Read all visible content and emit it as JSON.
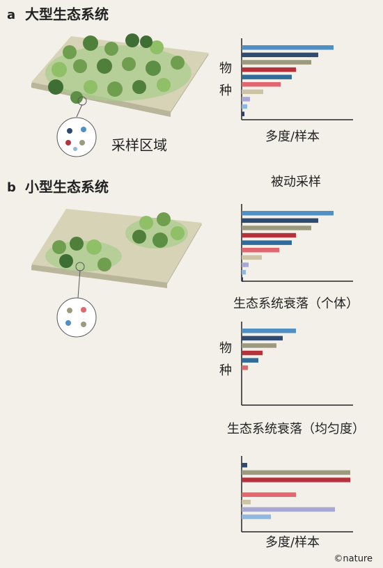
{
  "panels": [
    {
      "label": "a",
      "title": "大型生态系统",
      "sample_label": "采样区域"
    },
    {
      "label": "b",
      "title": "小型生态系统"
    }
  ],
  "credit": "©nature",
  "chart_data": [
    {
      "type": "bar",
      "orientation": "horizontal",
      "ylabel": "物种",
      "xlabel": "多度/样本",
      "xlim": [
        0,
        160
      ],
      "values": [
        132,
        110,
        100,
        78,
        72,
        56,
        31,
        12,
        8,
        4
      ],
      "colors": [
        "#4f8fc4",
        "#2e4a6e",
        "#9c9a7e",
        "#b5313c",
        "#2f6c99",
        "#e0666f",
        "#cbc3a3",
        "#a7a8d4",
        "#8fb7e0",
        "#2c3e66"
      ]
    },
    {
      "type": "bar",
      "orientation": "horizontal",
      "title": "被动采样",
      "xlim": [
        0,
        160
      ],
      "values": [
        132,
        110,
        100,
        78,
        72,
        54,
        29,
        10,
        6,
        2
      ],
      "colors": [
        "#4f8fc4",
        "#2e4a6e",
        "#9c9a7e",
        "#b5313c",
        "#2f6c99",
        "#e0666f",
        "#cbc3a3",
        "#a7a8d4",
        "#8fb7e0",
        "#2c3e66"
      ]
    },
    {
      "type": "bar",
      "orientation": "horizontal",
      "title": "生态系统衰落（个体）",
      "ylabel": "物种",
      "xlim": [
        0,
        160
      ],
      "values": [
        78,
        59,
        50,
        30,
        24,
        9
      ],
      "colors": [
        "#4f8fc4",
        "#2e4a6e",
        "#9c9a7e",
        "#b5313c",
        "#2f6c99",
        "#e0666f"
      ]
    },
    {
      "type": "bar",
      "orientation": "horizontal",
      "title": "生态系统衰落（均匀度）",
      "xlabel": "多度/样本",
      "xlim": [
        0,
        160
      ],
      "values": [
        8,
        156,
        156,
        null,
        78,
        13,
        134,
        42
      ],
      "colors": [
        "#2e4a6e",
        "#9c9a7e",
        "#b5313c",
        "#2f6c99",
        "#e0666f",
        "#cbc3a3",
        "#a7a8d4",
        "#8fb7e0"
      ]
    }
  ]
}
